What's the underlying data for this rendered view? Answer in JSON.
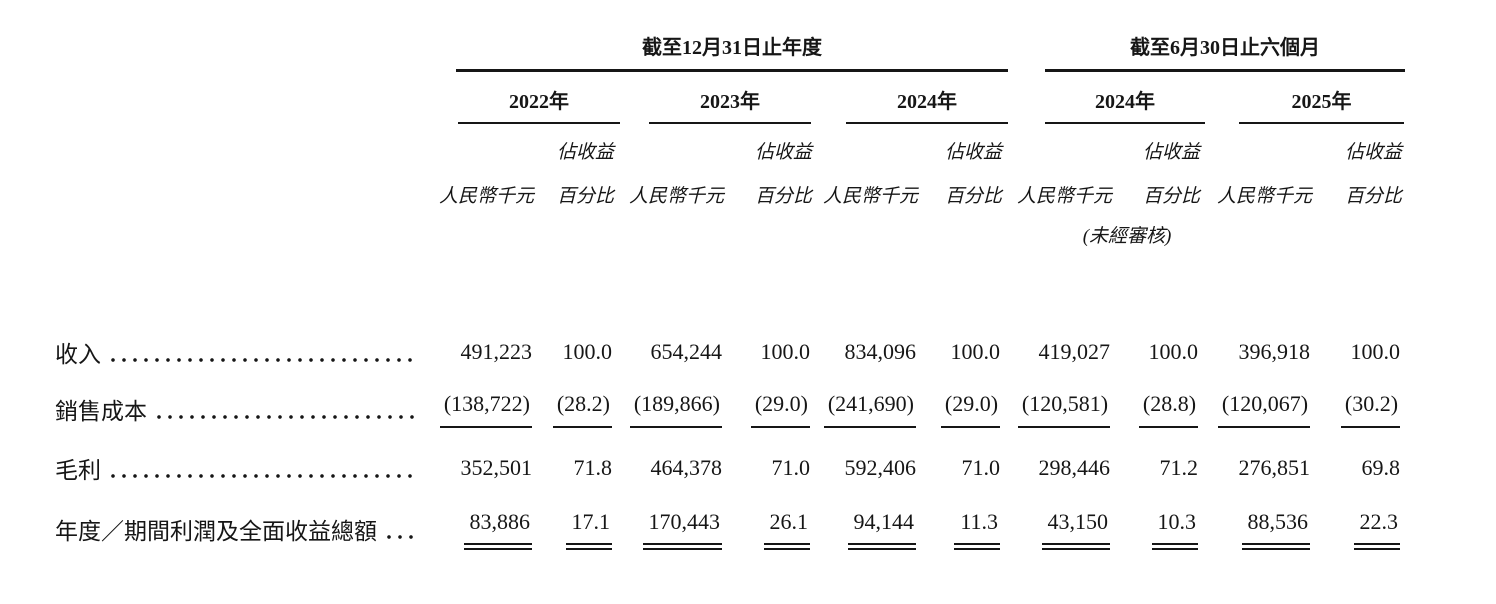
{
  "table": {
    "groups": [
      {
        "title": "截至12月31日止年度"
      },
      {
        "title": "截至6月30日止六個月"
      }
    ],
    "years": [
      "2022年",
      "2023年",
      "2024年",
      "2024年",
      "2025年"
    ],
    "sub_headers": {
      "amount": "人民幣千元",
      "pct_top": "佔收益",
      "pct_bottom": "百分比",
      "unaudited": "(未經審核)"
    },
    "rows": [
      {
        "label": "收入",
        "values": [
          "491,223",
          "100.0",
          "654,244",
          "100.0",
          "834,096",
          "100.0",
          "419,027",
          "100.0",
          "396,918",
          "100.0"
        ]
      },
      {
        "label": "銷售成本",
        "values": [
          "(138,722)",
          "(28.2)",
          "(189,866)",
          "(29.0)",
          "(241,690)",
          "(29.0)",
          "(120,581)",
          "(28.8)",
          "(120,067)",
          "(30.2)"
        ]
      },
      {
        "label": "毛利",
        "values": [
          "352,501",
          "71.8",
          "464,378",
          "71.0",
          "592,406",
          "71.0",
          "298,446",
          "71.2",
          "276,851",
          "69.8"
        ]
      },
      {
        "label": "年度／期間利潤及全面收益總額",
        "values": [
          "83,886",
          "17.1",
          "170,443",
          "26.1",
          "94,144",
          "11.3",
          "43,150",
          "10.3",
          "88,536",
          "22.3"
        ]
      }
    ]
  }
}
